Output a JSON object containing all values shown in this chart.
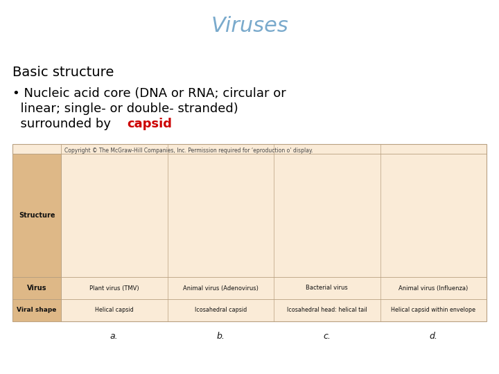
{
  "title": "Viruses",
  "title_color": "#7aaacc",
  "title_fontsize": 22,
  "section_header": "Basic structure",
  "section_header_fontsize": 14,
  "section_header_color": "#000000",
  "bullet_text_line1": " Nucleic acid core (DNA or RNA; circular or",
  "bullet_text_line2": "  linear; single- or double- stranded)",
  "bullet_text_line3": "  surrounded by ",
  "bullet_highlight": "capsid",
  "bullet_highlight_color": "#cc0000",
  "bullet_fontsize": 13,
  "bullet_color": "#000000",
  "bullet_symbol": "•",
  "bg_color": "#ffffff",
  "copyright_text": "Copyright © The McGraw-Hill Companies, Inc. Permission required for ‘eproduction o’ display.",
  "copyright_fontsize": 5.5,
  "virus_names": [
    "Plant virus (TMV)",
    "Animal virus (Adenovirus)",
    "Bacterial virus",
    "Animal virus (Influenza)"
  ],
  "shape_names": [
    "Helical capsid",
    "Icosahedral capsid",
    "Icosahedral head: helical tail",
    "Helical capsid within envelope"
  ],
  "table_label_bg": "#deb887",
  "table_content_bg": "#faebd7",
  "table_border_color": "#b8a080",
  "footer_labels": [
    "a.",
    "b.",
    "c.",
    "d."
  ]
}
